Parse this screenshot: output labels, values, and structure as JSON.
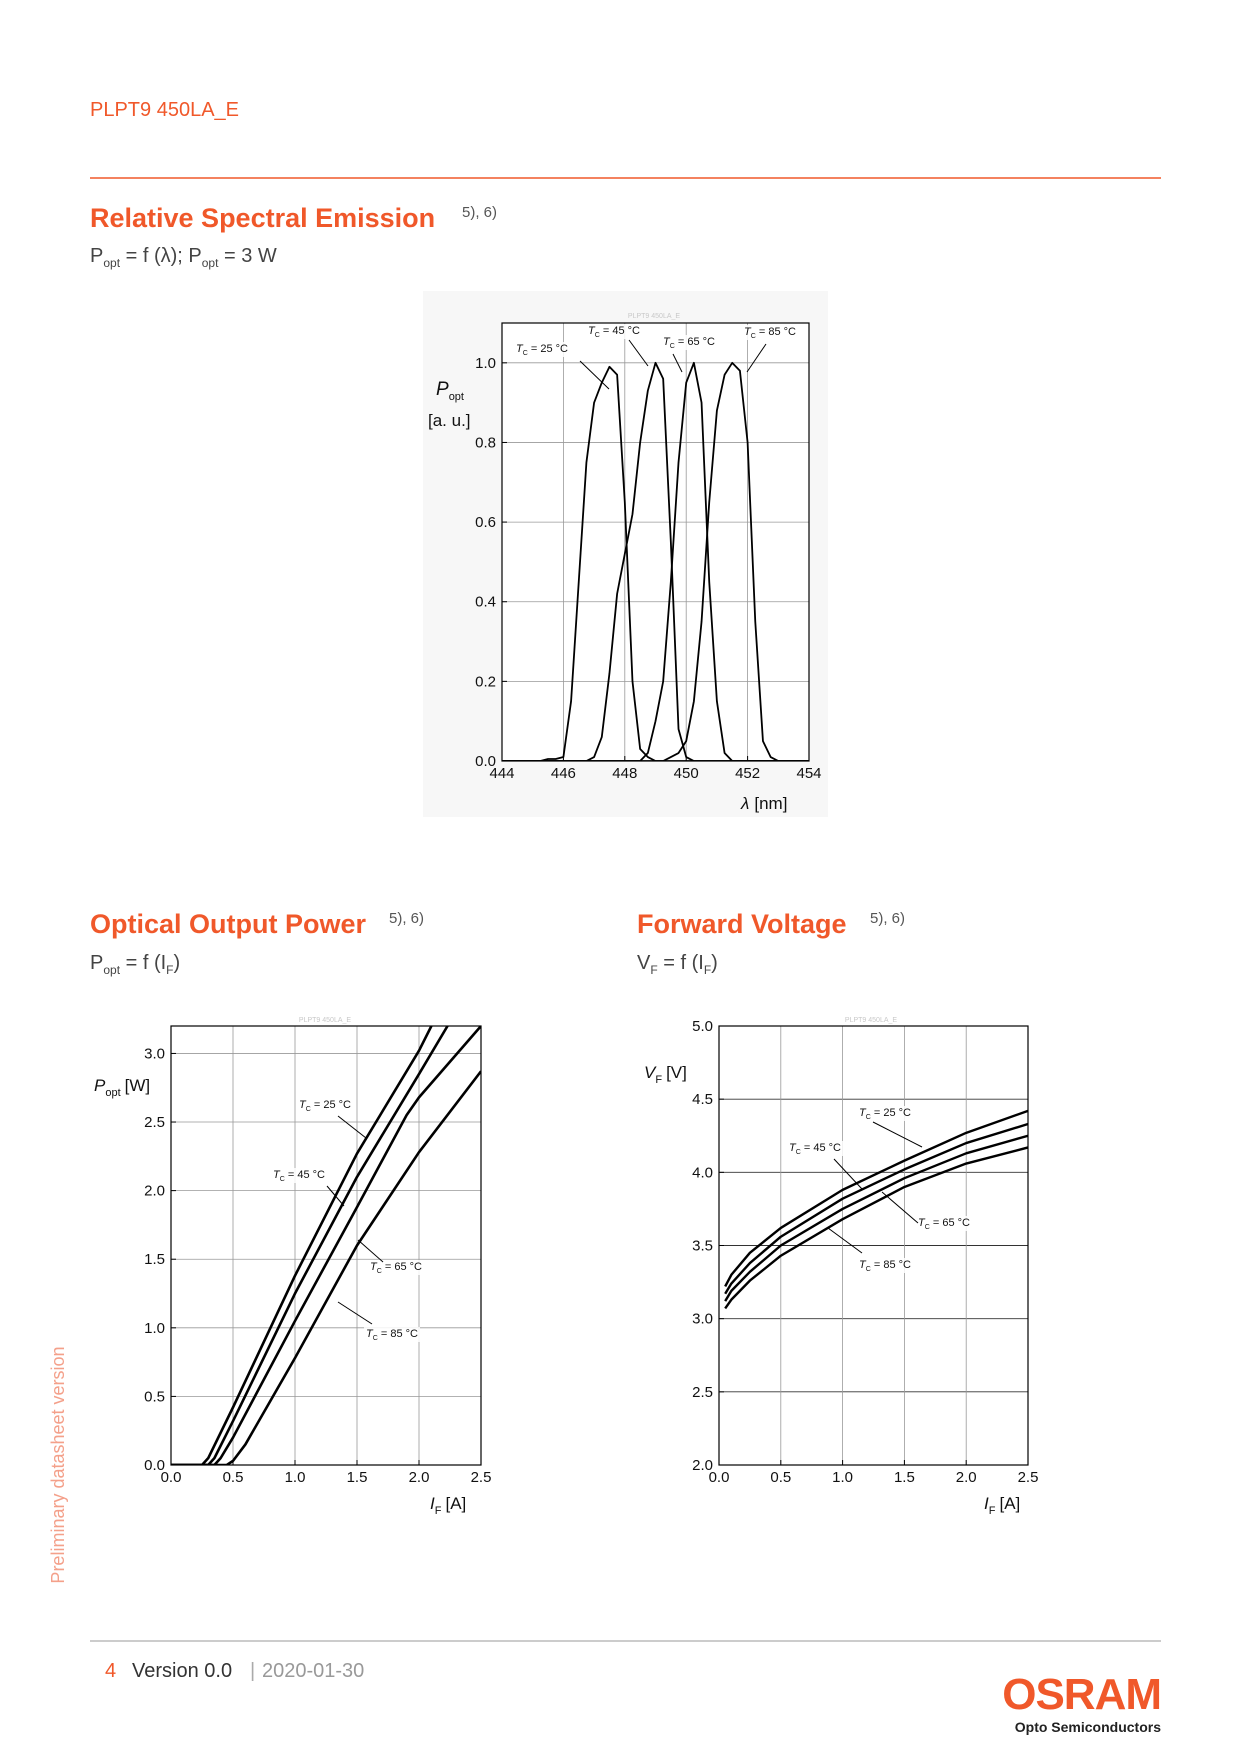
{
  "header": {
    "title": "PLPT9 450LA_E"
  },
  "sections": [
    {
      "title": "Relative Spectral Emission",
      "refs": "5), 6)",
      "subtitle": [
        "P",
        "opt",
        " = f (λ); P",
        "opt",
        " = 3 W"
      ]
    },
    {
      "title": "Optical Output Power",
      "refs": "5), 6)",
      "subtitle": [
        "P",
        "opt",
        " = f (I",
        "F",
        ")"
      ]
    },
    {
      "title": "Forward Voltage",
      "refs": "5), 6)",
      "subtitle": [
        "V",
        "F",
        " = f (I",
        "F",
        ")"
      ]
    }
  ],
  "chart_data": [
    {
      "type": "line",
      "watermark": "PLPT9 450LA_E",
      "y_label": [
        "P",
        "opt",
        "[a. u.]"
      ],
      "x_label": [
        "λ",
        "[nm]"
      ],
      "xlim": [
        444,
        454
      ],
      "ylim": [
        0,
        1.1
      ],
      "grid": true,
      "xticks": [
        444,
        446,
        448,
        450,
        452,
        454
      ],
      "yticks": [
        {
          "value": 0,
          "label": "0.0"
        },
        {
          "value": 0.2,
          "label": "0.2"
        },
        {
          "value": 0.4,
          "label": "0.4"
        },
        {
          "value": 0.6,
          "label": "0.6"
        },
        {
          "value": 0.8,
          "label": "0.8"
        },
        {
          "value": 1.0,
          "label": "1.0"
        }
      ],
      "x": [
        444,
        444.25,
        444.5,
        444.75,
        445,
        445.25,
        445.5,
        445.75,
        446,
        446.25,
        446.5,
        446.75,
        447,
        447.25,
        447.5,
        447.75,
        448,
        448.25,
        448.5,
        448.75,
        449,
        449.25,
        449.5,
        449.75,
        450,
        450.25,
        450.5,
        450.75,
        451,
        451.25,
        451.5,
        451.75,
        452,
        452.25,
        452.5,
        452.75,
        453,
        453.25,
        453.5,
        453.75,
        454
      ],
      "series": [
        {
          "color": "#000000",
          "values": [
            0,
            0,
            0,
            0,
            0,
            0,
            0.005,
            0.005,
            0.01,
            0.15,
            0.45,
            0.75,
            0.9,
            0.95,
            0.99,
            0.97,
            0.65,
            0.2,
            0.03,
            0.01,
            0,
            0,
            0,
            0,
            0,
            0,
            0,
            0,
            0,
            0,
            0,
            0,
            0,
            0,
            0,
            0,
            0,
            0,
            0,
            0,
            0
          ]
        },
        {
          "color": "#000000",
          "values": [
            0,
            0,
            0,
            0,
            0,
            0,
            0,
            0,
            0,
            0,
            0,
            0,
            0.01,
            0.06,
            0.22,
            0.42,
            0.52,
            0.62,
            0.8,
            0.93,
            1.0,
            0.96,
            0.55,
            0.08,
            0.01,
            0,
            0,
            0,
            0,
            0,
            0,
            0,
            0,
            0,
            0,
            0,
            0,
            0,
            0,
            0,
            0
          ]
        },
        {
          "color": "#000000",
          "values": [
            0,
            0,
            0,
            0,
            0,
            0,
            0,
            0,
            0,
            0,
            0,
            0,
            0,
            0,
            0,
            0,
            0,
            0,
            0,
            0.02,
            0.1,
            0.2,
            0.45,
            0.75,
            0.95,
            1.0,
            0.9,
            0.45,
            0.15,
            0.02,
            0,
            0,
            0,
            0,
            0,
            0,
            0,
            0,
            0,
            0,
            0
          ]
        },
        {
          "color": "#000000",
          "values": [
            0,
            0,
            0,
            0,
            0,
            0,
            0,
            0,
            0,
            0,
            0,
            0,
            0,
            0,
            0,
            0,
            0,
            0,
            0,
            0,
            0,
            0,
            0.01,
            0.02,
            0.05,
            0.15,
            0.35,
            0.65,
            0.88,
            0.97,
            1.0,
            0.98,
            0.8,
            0.35,
            0.05,
            0.01,
            0,
            0,
            0,
            0,
            0
          ]
        }
      ],
      "annotations": [
        {
          "symbol": "T",
          "sub": "C",
          "text": " = 25 °C"
        },
        {
          "symbol": "T",
          "sub": "C",
          "text": " = 45 °C"
        },
        {
          "symbol": "T",
          "sub": "C",
          "text": " = 65 °C"
        },
        {
          "symbol": "T",
          "sub": "C",
          "text": " = 85 °C"
        }
      ]
    },
    {
      "type": "line",
      "watermark": "PLPT9 450LA_E",
      "y_label": [
        "P",
        "opt",
        "[W]"
      ],
      "x_label": [
        "I",
        "F",
        "[A]"
      ],
      "xlim": [
        0,
        2.5
      ],
      "ylim": [
        0,
        3.2
      ],
      "grid": true,
      "xticks": [
        {
          "value": 0,
          "label": "0.0"
        },
        {
          "value": 0.5,
          "label": "0.5"
        },
        {
          "value": 1.0,
          "label": "1.0"
        },
        {
          "value": 1.5,
          "label": "1.5"
        },
        {
          "value": 2.0,
          "label": "2.0"
        },
        {
          "value": 2.5,
          "label": "2.5"
        }
      ],
      "yticks": [
        {
          "value": 0,
          "label": "0.0"
        },
        {
          "value": 0.5,
          "label": "0.5"
        },
        {
          "value": 1.0,
          "label": "1.0"
        },
        {
          "value": 1.5,
          "label": "1.5"
        },
        {
          "value": 2.0,
          "label": "2.0"
        },
        {
          "value": 2.5,
          "label": "2.5"
        },
        {
          "value": 3.0,
          "label": "3.0"
        }
      ],
      "series": [
        {
          "color": "#000000",
          "x": [
            0,
            0.25,
            0.3,
            0.5,
            1.0,
            1.5,
            2.0,
            2.1
          ],
          "values": [
            0,
            0,
            0.05,
            0.42,
            1.38,
            2.27,
            3.02,
            3.2
          ]
        },
        {
          "color": "#000000",
          "x": [
            0,
            0.3,
            0.35,
            0.5,
            1.0,
            1.5,
            2.0,
            2.23
          ],
          "values": [
            0,
            0,
            0.05,
            0.32,
            1.25,
            2.1,
            2.85,
            3.2
          ]
        },
        {
          "color": "#000000",
          "x": [
            0,
            0.35,
            0.4,
            0.5,
            1.0,
            1.5,
            1.9,
            2.0,
            2.5
          ],
          "values": [
            0,
            0,
            0.05,
            0.2,
            1.05,
            1.88,
            2.55,
            2.68,
            3.2
          ]
        },
        {
          "color": "#000000",
          "x": [
            0,
            0.45,
            0.5,
            0.6,
            1.0,
            1.5,
            2.0,
            2.5
          ],
          "values": [
            0,
            0,
            0.03,
            0.15,
            0.78,
            1.6,
            2.28,
            2.87
          ]
        }
      ],
      "annotations": [
        {
          "symbol": "T",
          "sub": "C",
          "text": " = 25 °C"
        },
        {
          "symbol": "T",
          "sub": "C",
          "text": " = 45 °C"
        },
        {
          "symbol": "T",
          "sub": "C",
          "text": " = 65 °C"
        },
        {
          "symbol": "T",
          "sub": "C",
          "text": " = 85 °C"
        }
      ]
    },
    {
      "type": "line",
      "watermark": "PLPT9 450LA_E",
      "y_label": [
        "V",
        "F",
        "[V]"
      ],
      "x_label": [
        "I",
        "F",
        "[A]"
      ],
      "xlim": [
        0,
        2.5
      ],
      "ylim": [
        2.0,
        5.0
      ],
      "grid": true,
      "xticks": [
        {
          "value": 0,
          "label": "0.0"
        },
        {
          "value": 0.5,
          "label": "0.5"
        },
        {
          "value": 1.0,
          "label": "1.0"
        },
        {
          "value": 1.5,
          "label": "1.5"
        },
        {
          "value": 2.0,
          "label": "2.0"
        },
        {
          "value": 2.5,
          "label": "2.5"
        }
      ],
      "yticks": [
        {
          "value": 2.0,
          "label": "2.0"
        },
        {
          "value": 2.5,
          "label": "2.5"
        },
        {
          "value": 3.0,
          "label": "3.0"
        },
        {
          "value": 3.5,
          "label": "3.5"
        },
        {
          "value": 4.0,
          "label": "4.0"
        },
        {
          "value": 4.5,
          "label": "4.5"
        },
        {
          "value": 5.0,
          "label": "5.0"
        }
      ],
      "series": [
        {
          "color": "#000000",
          "x": [
            0.05,
            0.1,
            0.25,
            0.5,
            1.0,
            1.5,
            2.0,
            2.5
          ],
          "values": [
            3.22,
            3.3,
            3.45,
            3.62,
            3.88,
            4.08,
            4.27,
            4.42
          ]
        },
        {
          "color": "#000000",
          "x": [
            0.05,
            0.1,
            0.25,
            0.5,
            1.0,
            1.5,
            2.0,
            2.5
          ],
          "values": [
            3.17,
            3.24,
            3.38,
            3.56,
            3.82,
            4.02,
            4.2,
            4.33
          ]
        },
        {
          "color": "#000000",
          "x": [
            0.05,
            0.1,
            0.25,
            0.5,
            1.0,
            1.5,
            2.0,
            2.5
          ],
          "values": [
            3.12,
            3.19,
            3.32,
            3.5,
            3.75,
            3.96,
            4.13,
            4.25
          ]
        },
        {
          "color": "#000000",
          "x": [
            0.05,
            0.1,
            0.25,
            0.5,
            1.0,
            1.5,
            2.0,
            2.5
          ],
          "values": [
            3.07,
            3.13,
            3.26,
            3.43,
            3.68,
            3.9,
            4.06,
            4.17
          ]
        }
      ],
      "annotations": [
        {
          "symbol": "T",
          "sub": "C",
          "text": " = 25 °C"
        },
        {
          "symbol": "T",
          "sub": "C",
          "text": " = 45 °C"
        },
        {
          "symbol": "T",
          "sub": "C",
          "text": " = 65 °C"
        },
        {
          "symbol": "T",
          "sub": "C",
          "text": " = 85 °C"
        }
      ]
    }
  ],
  "sidebar": "Preliminary datasheet version",
  "footer": {
    "page": "4",
    "version": "Version 0.0",
    "separator": "|",
    "date": "2020-01-30"
  },
  "logo": {
    "brand": "OSRAM",
    "tagline": "Opto Semiconductors"
  }
}
